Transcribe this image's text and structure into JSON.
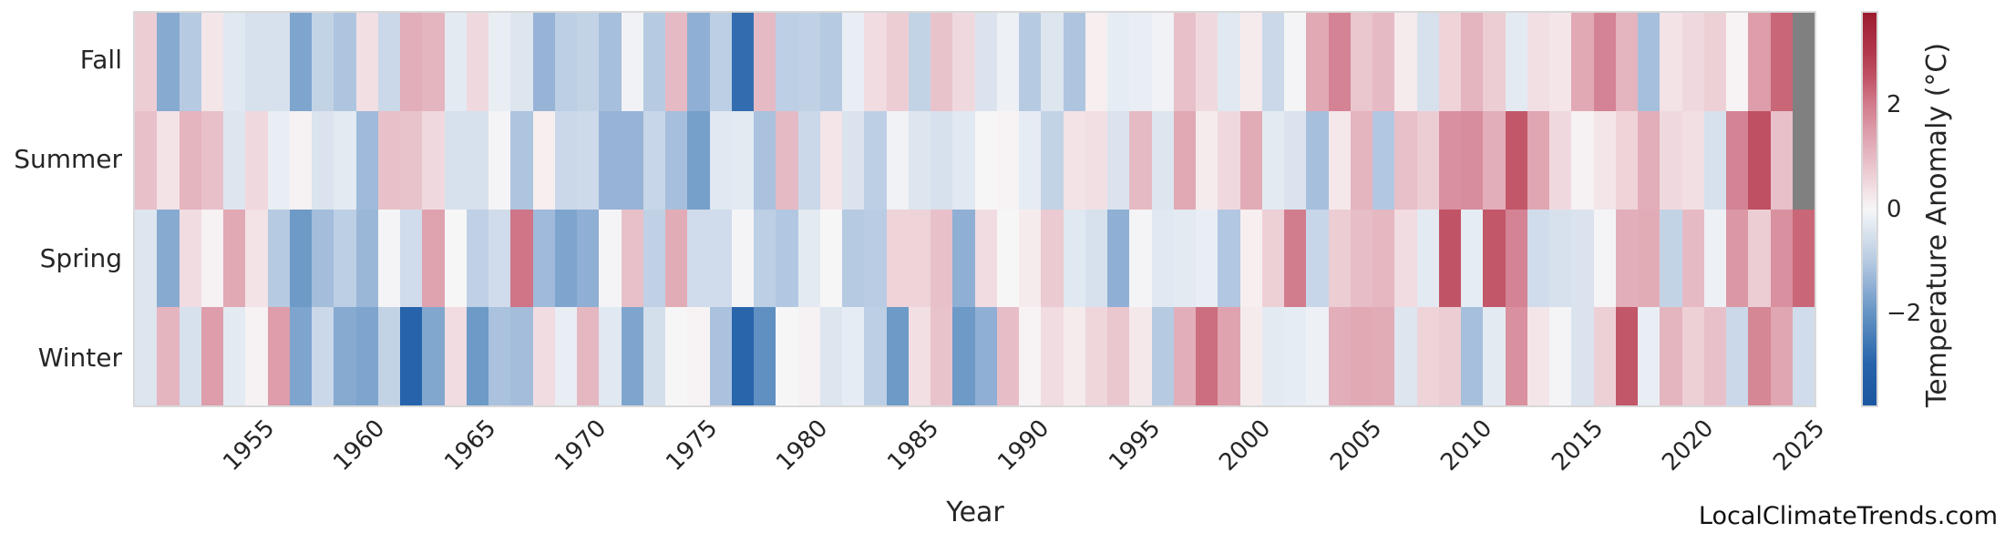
{
  "watermark": "LocalClimateTrends.com",
  "chart_data": {
    "type": "heatmap",
    "title": "",
    "xlabel": "Year",
    "ylabel": "",
    "legend_position": "right-colorbar",
    "grid": false,
    "rows": [
      "Fall",
      "Summer",
      "Spring",
      "Winter"
    ],
    "years": [
      1950,
      1951,
      1952,
      1953,
      1954,
      1955,
      1956,
      1957,
      1958,
      1959,
      1960,
      1961,
      1962,
      1963,
      1964,
      1965,
      1966,
      1967,
      1968,
      1969,
      1970,
      1971,
      1972,
      1973,
      1974,
      1975,
      1976,
      1977,
      1978,
      1979,
      1980,
      1981,
      1982,
      1983,
      1984,
      1985,
      1986,
      1987,
      1988,
      1989,
      1990,
      1991,
      1992,
      1993,
      1994,
      1995,
      1996,
      1997,
      1998,
      1999,
      2000,
      2001,
      2002,
      2003,
      2004,
      2005,
      2006,
      2007,
      2008,
      2009,
      2010,
      2011,
      2012,
      2013,
      2014,
      2015,
      2016,
      2017,
      2018,
      2019,
      2020,
      2021,
      2022,
      2023,
      2024,
      2025
    ],
    "x_ticks": [
      "1955",
      "1960",
      "1965",
      "1970",
      "1975",
      "1980",
      "1985",
      "1990",
      "1995",
      "2000",
      "2005",
      "2010",
      "2015",
      "2020",
      "2025"
    ],
    "series": [
      {
        "name": "Fall",
        "values": [
          0.7,
          -1.6,
          -1.0,
          0.3,
          -0.35,
          -0.5,
          -0.5,
          -1.7,
          -0.8,
          -1.1,
          0.4,
          -0.7,
          1.2,
          1.1,
          -0.3,
          0.5,
          -0.2,
          -0.4,
          -1.4,
          -0.9,
          -0.8,
          -1.2,
          -0.1,
          -1.0,
          1.0,
          -1.5,
          -0.9,
          -2.8,
          1.0,
          -0.9,
          -0.85,
          -1.0,
          -0.2,
          0.45,
          0.7,
          -0.8,
          0.85,
          0.5,
          -0.45,
          -0.15,
          -1.0,
          -0.4,
          -1.1,
          0.15,
          -0.25,
          -0.2,
          -0.1,
          0.9,
          0.5,
          -0.35,
          0.2,
          -0.7,
          -0.05,
          1.3,
          1.9,
          0.8,
          1.0,
          0.2,
          -0.5,
          0.6,
          1.1,
          0.7,
          -0.3,
          0.4,
          0.3,
          1.3,
          1.9,
          1.1,
          -1.2,
          0.35,
          0.5,
          0.65,
          0.05,
          1.5,
          2.3,
          null
        ]
      },
      {
        "name": "Summer",
        "values": [
          0.9,
          0.35,
          1.1,
          0.9,
          -0.4,
          0.5,
          -0.2,
          0.1,
          -0.45,
          -0.3,
          -1.3,
          0.9,
          0.85,
          0.5,
          -0.5,
          -0.5,
          -0.05,
          -1.1,
          0.15,
          -0.7,
          -0.65,
          -1.4,
          -1.4,
          -0.75,
          -1.2,
          -1.8,
          -0.35,
          -0.3,
          -1.15,
          1.0,
          -0.7,
          0.3,
          -0.45,
          -0.9,
          -0.1,
          -0.4,
          -0.5,
          -0.35,
          0.0,
          0.05,
          -0.25,
          -0.8,
          0.35,
          0.4,
          -0.45,
          1.0,
          -0.4,
          1.3,
          0.2,
          0.5,
          1.25,
          -0.3,
          -0.45,
          -1.2,
          0.25,
          1.1,
          -1.05,
          0.9,
          0.7,
          1.7,
          1.75,
          1.2,
          2.5,
          1.35,
          0.5,
          0.1,
          0.3,
          0.6,
          1.2,
          0.5,
          0.4,
          -0.5,
          1.9,
          2.6,
          0.9,
          null
        ]
      },
      {
        "name": "Spring",
        "values": [
          -0.4,
          -1.6,
          0.45,
          0.1,
          1.3,
          0.35,
          -1.0,
          -1.9,
          -1.25,
          -0.9,
          -1.35,
          -0.05,
          -0.6,
          1.4,
          0.0,
          -0.85,
          -0.6,
          2.1,
          -1.3,
          -1.7,
          -1.5,
          -0.05,
          0.9,
          -0.85,
          1.25,
          -0.6,
          -0.6,
          -0.05,
          -0.9,
          -1.05,
          -0.3,
          0.0,
          -1.0,
          -0.95,
          0.6,
          0.6,
          0.9,
          -1.5,
          0.45,
          0.0,
          0.2,
          0.75,
          -0.35,
          -0.5,
          -1.5,
          -0.05,
          -0.35,
          -0.3,
          -0.2,
          -1.05,
          0.15,
          0.65,
          2.0,
          -0.75,
          0.7,
          0.95,
          1.05,
          0.45,
          -0.3,
          2.55,
          -0.25,
          2.5,
          1.9,
          -0.6,
          -0.5,
          -0.45,
          -0.05,
          1.2,
          1.25,
          -0.8,
          1.0,
          -0.15,
          1.6,
          0.7,
          1.7,
          2.3
        ]
      },
      {
        "name": "Winter",
        "values": [
          -0.4,
          1.1,
          -0.5,
          1.5,
          -0.3,
          0.1,
          1.5,
          -1.7,
          -0.7,
          -1.6,
          -1.7,
          -0.8,
          -3.0,
          -1.65,
          0.45,
          -1.9,
          -1.15,
          -1.25,
          0.45,
          -0.2,
          1.05,
          -0.35,
          -1.7,
          -0.55,
          0.0,
          0.05,
          -1.15,
          -2.95,
          -2.1,
          0.0,
          0.1,
          -0.4,
          -0.25,
          -0.9,
          -1.9,
          0.4,
          0.85,
          -1.9,
          -1.5,
          0.95,
          0.05,
          0.45,
          0.2,
          0.55,
          0.8,
          0.25,
          -1.0,
          1.2,
          2.2,
          1.4,
          0.2,
          -0.3,
          -0.25,
          -0.15,
          1.2,
          1.3,
          1.25,
          -0.4,
          0.6,
          0.7,
          -1.2,
          -0.3,
          1.7,
          0.3,
          -0.05,
          -0.45,
          0.65,
          2.5,
          -0.2,
          1.1,
          0.65,
          0.9,
          -0.7,
          1.85,
          1.35,
          -0.6
        ]
      }
    ],
    "colorbar": {
      "label": "Temperature Anomaly (°C)",
      "ticks": [
        {
          "label": "2",
          "value": 2
        },
        {
          "label": "0",
          "value": 0
        },
        {
          "label": "−2",
          "value": -2
        }
      ],
      "vmin": -3.8,
      "vmax": 3.8
    },
    "missing_color": "#808080",
    "colormap": [
      [
        -3.8,
        "#1b57a0"
      ],
      [
        -3.0,
        "#2663aa"
      ],
      [
        -2.0,
        "#6595c4"
      ],
      [
        -1.5,
        "#8fafd4"
      ],
      [
        -1.0,
        "#b6cae2"
      ],
      [
        -0.5,
        "#d7e1ed"
      ],
      [
        -0.2,
        "#e9eef4"
      ],
      [
        0.0,
        "#f7f6f6"
      ],
      [
        0.2,
        "#f5ebed"
      ],
      [
        0.5,
        "#f0d9de"
      ],
      [
        1.0,
        "#e6bac4"
      ],
      [
        1.5,
        "#dd9daa"
      ],
      [
        2.0,
        "#d27d8e"
      ],
      [
        2.6,
        "#bf4f62"
      ],
      [
        3.0,
        "#b23a4e"
      ],
      [
        3.8,
        "#9c1a2e"
      ]
    ]
  }
}
